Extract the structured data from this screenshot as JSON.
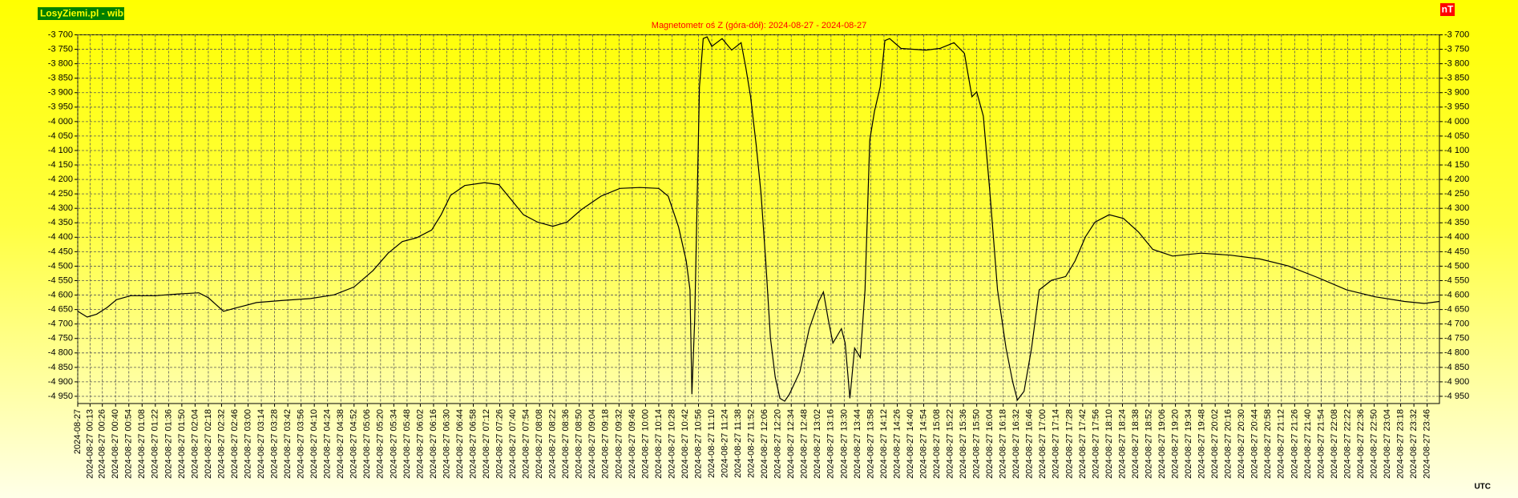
{
  "brand": "LosyZiemi.pl - wibi",
  "chart_data": {
    "type": "line",
    "title": "Magnetometr oś Z (góra-dół): 2024-08-27 - 2024-08-27",
    "ylabel": "nT",
    "xlabel": "UTC",
    "grid": true,
    "ylim": [
      -4975,
      -3700
    ],
    "yticks": [
      {
        "value": -3700,
        "label": "-3 700"
      },
      {
        "value": -3750,
        "label": "-3 750"
      },
      {
        "value": -3800,
        "label": "-3 800"
      },
      {
        "value": -3850,
        "label": "-3 850"
      },
      {
        "value": -3900,
        "label": "-3 900"
      },
      {
        "value": -3950,
        "label": "-3 950"
      },
      {
        "value": -4000,
        "label": "-4 000"
      },
      {
        "value": -4050,
        "label": "-4 050"
      },
      {
        "value": -4100,
        "label": "-4 100"
      },
      {
        "value": -4150,
        "label": "-4 150"
      },
      {
        "value": -4200,
        "label": "-4 200"
      },
      {
        "value": -4250,
        "label": "-4 250"
      },
      {
        "value": -4300,
        "label": "-4 300"
      },
      {
        "value": -4350,
        "label": "-4 350"
      },
      {
        "value": -4400,
        "label": "-4 400"
      },
      {
        "value": -4450,
        "label": "-4 450"
      },
      {
        "value": -4500,
        "label": "-4 500"
      },
      {
        "value": -4550,
        "label": "-4 550"
      },
      {
        "value": -4600,
        "label": "-4 600"
      },
      {
        "value": -4650,
        "label": "-4 650"
      },
      {
        "value": -4700,
        "label": "-4 700"
      },
      {
        "value": -4750,
        "label": "-4 750"
      },
      {
        "value": -4800,
        "label": "-4 800"
      },
      {
        "value": -4850,
        "label": "-4 850"
      },
      {
        "value": -4900,
        "label": "-4 900"
      },
      {
        "value": -4950,
        "label": "-4 950"
      }
    ],
    "xlim": [
      "2024-08-27 00:00",
      "2024-08-27 23:59"
    ],
    "xticks": [
      {
        "value": "2024-08-27 00:00",
        "label": "2024-08-27"
      },
      "2024-08-27 00:13",
      "2024-08-27 00:26",
      "2024-08-27 00:40",
      "2024-08-27 00:54",
      "2024-08-27 01:08",
      "2024-08-27 01:22",
      "2024-08-27 01:36",
      "2024-08-27 01:50",
      "2024-08-27 02:04",
      "2024-08-27 02:18",
      "2024-08-27 02:32",
      "2024-08-27 02:46",
      "2024-08-27 03:00",
      "2024-08-27 03:14",
      "2024-08-27 03:28",
      "2024-08-27 03:42",
      "2024-08-27 03:56",
      "2024-08-27 04:10",
      "2024-08-27 04:24",
      "2024-08-27 04:38",
      "2024-08-27 04:52",
      "2024-08-27 05:06",
      "2024-08-27 05:20",
      "2024-08-27 05:34",
      "2024-08-27 05:48",
      "2024-08-27 06:02",
      "2024-08-27 06:16",
      "2024-08-27 06:30",
      "2024-08-27 06:44",
      "2024-08-27 06:58",
      "2024-08-27 07:12",
      "2024-08-27 07:26",
      "2024-08-27 07:40",
      "2024-08-27 07:54",
      "2024-08-27 08:08",
      "2024-08-27 08:22",
      "2024-08-27 08:36",
      "2024-08-27 08:50",
      "2024-08-27 09:04",
      "2024-08-27 09:18",
      "2024-08-27 09:32",
      "2024-08-27 09:46",
      "2024-08-27 10:00",
      "2024-08-27 10:14",
      "2024-08-27 10:28",
      "2024-08-27 10:42",
      "2024-08-27 10:56",
      "2024-08-27 11:10",
      "2024-08-27 11:24",
      "2024-08-27 11:38",
      "2024-08-27 11:52",
      "2024-08-27 12:06",
      "2024-08-27 12:20",
      "2024-08-27 12:34",
      "2024-08-27 12:48",
      "2024-08-27 13:02",
      "2024-08-27 13:16",
      "2024-08-27 13:30",
      "2024-08-27 13:44",
      "2024-08-27 13:58",
      "2024-08-27 14:12",
      "2024-08-27 14:26",
      "2024-08-27 14:40",
      "2024-08-27 14:54",
      "2024-08-27 15:08",
      "2024-08-27 15:22",
      "2024-08-27 15:36",
      "2024-08-27 15:50",
      "2024-08-27 16:04",
      "2024-08-27 16:18",
      "2024-08-27 16:32",
      "2024-08-27 16:46",
      "2024-08-27 17:00",
      "2024-08-27 17:14",
      "2024-08-27 17:28",
      "2024-08-27 17:42",
      "2024-08-27 17:56",
      "2024-08-27 18:10",
      "2024-08-27 18:24",
      "2024-08-27 18:38",
      "2024-08-27 18:52",
      "2024-08-27 19:06",
      "2024-08-27 19:20",
      "2024-08-27 19:34",
      "2024-08-27 19:48",
      "2024-08-27 20:02",
      "2024-08-27 20:16",
      "2024-08-27 20:30",
      "2024-08-27 20:44",
      "2024-08-27 20:58",
      "2024-08-27 21:12",
      "2024-08-27 21:26",
      "2024-08-27 21:40",
      "2024-08-27 21:54",
      "2024-08-27 22:08",
      "2024-08-27 22:22",
      "2024-08-27 22:36",
      "2024-08-27 22:50",
      "2024-08-27 23:04",
      "2024-08-27 23:18",
      "2024-08-27 23:32",
      "2024-08-27 23:46"
    ],
    "x": [
      "2024-08-27 00:00",
      "2024-08-27 00:10",
      "2024-08-27 00:20",
      "2024-08-27 00:31",
      "2024-08-27 00:41",
      "2024-08-27 00:56",
      "2024-08-27 01:22",
      "2024-08-27 01:47",
      "2024-08-27 02:08",
      "2024-08-27 02:18",
      "2024-08-27 02:34",
      "2024-08-27 02:49",
      "2024-08-27 03:09",
      "2024-08-27 03:35",
      "2024-08-27 04:06",
      "2024-08-27 04:31",
      "2024-08-27 04:52",
      "2024-08-27 05:12",
      "2024-08-27 05:28",
      "2024-08-27 05:43",
      "2024-08-27 05:58",
      "2024-08-27 06:14",
      "2024-08-27 06:24",
      "2024-08-27 06:34",
      "2024-08-27 06:49",
      "2024-08-27 07:10",
      "2024-08-27 07:25",
      "2024-08-27 07:35",
      "2024-08-27 07:51",
      "2024-08-27 08:06",
      "2024-08-27 08:22",
      "2024-08-27 08:37",
      "2024-08-27 08:52",
      "2024-08-27 09:13",
      "2024-08-27 09:33",
      "2024-08-27 09:54",
      "2024-08-27 10:14",
      "2024-08-27 10:24",
      "2024-08-27 10:35",
      "2024-08-27 10:43",
      "2024-08-27 10:47",
      "2024-08-27 10:49",
      "2024-08-27 10:52",
      "2024-08-27 10:57",
      "2024-08-27 11:01",
      "2024-08-27 11:05",
      "2024-08-27 11:10",
      "2024-08-27 11:21",
      "2024-08-27 11:31",
      "2024-08-27 11:41",
      "2024-08-27 11:46",
      "2024-08-27 11:51",
      "2024-08-27 11:57",
      "2024-08-27 12:02",
      "2024-08-27 12:07",
      "2024-08-27 12:12",
      "2024-08-27 12:17",
      "2024-08-27 12:22",
      "2024-08-27 12:27",
      "2024-08-27 12:32",
      "2024-08-27 12:43",
      "2024-08-27 12:53",
      "2024-08-27 13:03",
      "2024-08-27 13:08",
      "2024-08-27 13:13",
      "2024-08-27 13:18",
      "2024-08-27 13:27",
      "2024-08-27 13:31",
      "2024-08-27 13:36",
      "2024-08-27 13:41",
      "2024-08-27 13:47",
      "2024-08-27 13:52",
      "2024-08-27 13:57",
      "2024-08-27 14:02",
      "2024-08-27 14:08",
      "2024-08-27 14:13",
      "2024-08-27 14:18",
      "2024-08-27 14:30",
      "2024-08-27 14:56",
      "2024-08-27 15:11",
      "2024-08-27 15:26",
      "2024-08-27 15:37",
      "2024-08-27 15:45",
      "2024-08-27 15:50",
      "2024-08-27 15:57",
      "2024-08-27 16:04",
      "2024-08-27 16:12",
      "2024-08-27 16:21",
      "2024-08-27 16:28",
      "2024-08-27 16:33",
      "2024-08-27 16:40",
      "2024-08-27 16:48",
      "2024-08-27 16:56",
      "2024-08-27 17:09",
      "2024-08-27 17:24",
      "2024-08-27 17:34",
      "2024-08-27 17:45",
      "2024-08-27 17:55",
      "2024-08-27 18:10",
      "2024-08-27 18:25",
      "2024-08-27 18:41",
      "2024-08-27 18:56",
      "2024-08-27 19:17",
      "2024-08-27 19:47",
      "2024-08-27 20:18",
      "2024-08-27 20:49",
      "2024-08-27 21:19",
      "2024-08-27 21:50",
      "2024-08-27 22:21",
      "2024-08-27 22:51",
      "2024-08-27 23:22",
      "2024-08-27 23:43",
      "2024-08-27 23:59"
    ],
    "series": [
      {
        "color": "#000000",
        "values": [
          -4656,
          -4676,
          -4666,
          -4643,
          -4616,
          -4602,
          -4602,
          -4596,
          -4592,
          -4609,
          -4656,
          -4643,
          -4626,
          -4619,
          -4612,
          -4599,
          -4572,
          -4515,
          -4455,
          -4415,
          -4402,
          -4375,
          -4322,
          -4255,
          -4221,
          -4211,
          -4218,
          -4258,
          -4322,
          -4348,
          -4362,
          -4348,
          -4305,
          -4258,
          -4231,
          -4228,
          -4231,
          -4258,
          -4365,
          -4482,
          -4582,
          -4943,
          -4683,
          -3880,
          -3713,
          -3707,
          -3740,
          -3713,
          -3753,
          -3727,
          -3814,
          -3914,
          -4081,
          -4248,
          -4482,
          -4749,
          -4883,
          -4957,
          -4967,
          -4943,
          -4866,
          -4716,
          -4622,
          -4589,
          -4683,
          -4766,
          -4716,
          -4766,
          -4957,
          -4783,
          -4816,
          -4582,
          -4064,
          -3964,
          -3880,
          -3720,
          -3713,
          -3747,
          -3753,
          -3747,
          -3727,
          -3764,
          -3914,
          -3897,
          -3981,
          -4248,
          -4582,
          -4783,
          -4900,
          -4963,
          -4933,
          -4783,
          -4582,
          -4549,
          -4536,
          -4482,
          -4398,
          -4348,
          -4322,
          -4335,
          -4382,
          -4442,
          -4465,
          -4455,
          -4462,
          -4475,
          -4499,
          -4539,
          -4582,
          -4606,
          -4622,
          -4629,
          -4622
        ]
      }
    ]
  }
}
